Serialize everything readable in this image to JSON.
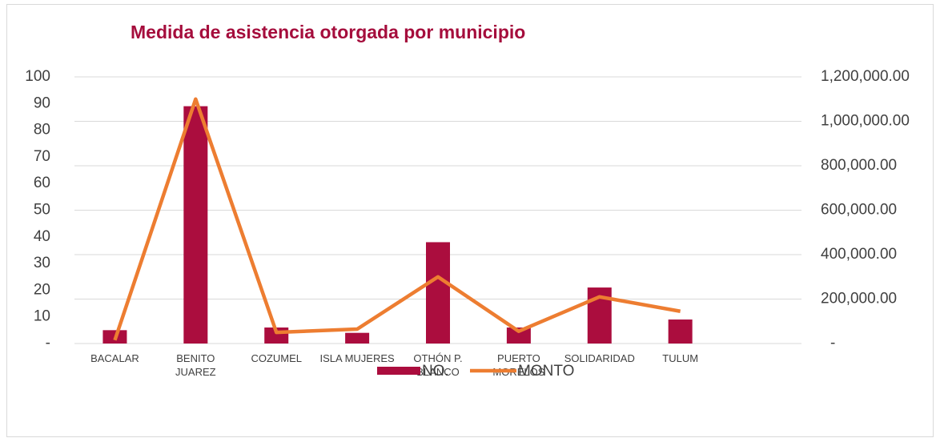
{
  "chart_data": {
    "type": "bar-line",
    "title": "Medida de asistencia otorgada por municipio",
    "categories": [
      "BACALAR",
      "BENITO\nJUAREZ",
      "COZUMEL",
      "ISLA MUJERES",
      "OTHÓN P.\nBLANCO",
      "PUERTO\nMORELOS",
      "SOLIDARIDAD",
      "TULUM",
      null
    ],
    "series": [
      {
        "name": "NO.",
        "type": "bar",
        "color": "#ab0d3e",
        "axis": "y",
        "values": [
          5,
          89,
          6,
          4,
          38,
          6,
          21,
          9,
          null
        ]
      },
      {
        "name": "MONTO",
        "type": "line",
        "color": "#ed7d31",
        "axis": "y2",
        "values": [
          15000,
          1100000,
          50000,
          65000,
          300000,
          55000,
          210000,
          145000,
          null
        ]
      }
    ],
    "ylim": [
      0,
      100
    ],
    "yticks": [
      {
        "value": 0,
        "label": "-"
      },
      10,
      20,
      30,
      40,
      50,
      60,
      70,
      80,
      90,
      100
    ],
    "y2lim": [
      0,
      1200000
    ],
    "y2ticks": [
      {
        "value": 0,
        "label": "-"
      },
      {
        "value": 200000,
        "label": "200,000.00"
      },
      {
        "value": 400000,
        "label": "400,000.00"
      },
      {
        "value": 600000,
        "label": "600,000.00"
      },
      {
        "value": 800000,
        "label": "800,000.00"
      },
      {
        "value": 1000000,
        "label": "1,000,000.00"
      },
      {
        "value": 1200000,
        "label": "1,200,000.00"
      }
    ],
    "grid": true,
    "legend": "bottom"
  }
}
